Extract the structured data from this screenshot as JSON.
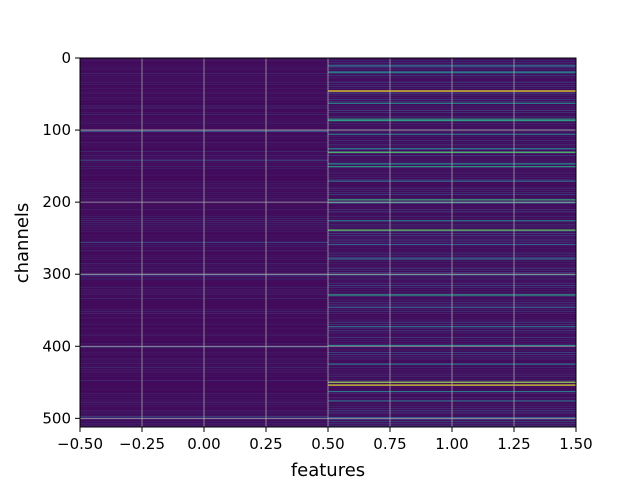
{
  "chart_data": {
    "type": "heatmap",
    "title": "",
    "xlabel": "features",
    "ylabel": "channels",
    "xlim": [
      -0.5,
      1.5
    ],
    "ylim": [
      512,
      0
    ],
    "y_inverted": true,
    "grid": true,
    "columns": [
      0,
      1
    ],
    "rows": 512,
    "colormap": "viridis",
    "xticks": [
      -0.5,
      -0.25,
      0.0,
      0.25,
      0.5,
      0.75,
      1.0,
      1.25,
      1.5
    ],
    "xtick_labels": [
      "−0.50",
      "−0.25",
      "0.00",
      "0.25",
      "0.50",
      "0.75",
      "1.00",
      "1.25",
      "1.50"
    ],
    "yticks": [
      0,
      100,
      200,
      300,
      400,
      500
    ],
    "ytick_labels": [
      "0",
      "100",
      "200",
      "300",
      "400",
      "500"
    ],
    "column_0_highlight_rows": [
      {
        "row": 101,
        "value": 0.25
      },
      {
        "row": 141,
        "value": 0.2
      },
      {
        "row": 255,
        "value": 0.2
      },
      {
        "row": 300,
        "value": 0.25
      },
      {
        "row": 400,
        "value": 0.2
      },
      {
        "row": 497,
        "value": 0.2
      }
    ],
    "column_1_highlight_rows": [
      {
        "row": 10,
        "value": 0.35
      },
      {
        "row": 19,
        "value": 0.45
      },
      {
        "row": 45,
        "value": 1.0
      },
      {
        "row": 48,
        "value": 0.2
      },
      {
        "row": 62,
        "value": 0.45
      },
      {
        "row": 84,
        "value": 0.55
      },
      {
        "row": 86,
        "value": 0.55
      },
      {
        "row": 105,
        "value": 0.4
      },
      {
        "row": 125,
        "value": 0.4
      },
      {
        "row": 130,
        "value": 0.7
      },
      {
        "row": 146,
        "value": 0.45
      },
      {
        "row": 150,
        "value": 0.55
      },
      {
        "row": 170,
        "value": 0.35
      },
      {
        "row": 196,
        "value": 0.6
      },
      {
        "row": 200,
        "value": 0.45
      },
      {
        "row": 225,
        "value": 0.4
      },
      {
        "row": 238,
        "value": 0.75
      },
      {
        "row": 258,
        "value": 0.3
      },
      {
        "row": 278,
        "value": 0.35
      },
      {
        "row": 300,
        "value": 0.35
      },
      {
        "row": 328,
        "value": 0.55
      },
      {
        "row": 345,
        "value": 0.3
      },
      {
        "row": 372,
        "value": 0.35
      },
      {
        "row": 398,
        "value": 0.45
      },
      {
        "row": 424,
        "value": 0.35
      },
      {
        "row": 449,
        "value": 0.85
      },
      {
        "row": 453,
        "value": 0.95
      },
      {
        "row": 462,
        "value": 0.4
      },
      {
        "row": 475,
        "value": 0.35
      },
      {
        "row": 498,
        "value": 0.3
      }
    ]
  }
}
